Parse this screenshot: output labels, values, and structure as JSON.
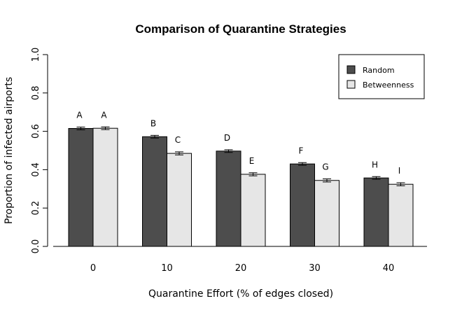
{
  "chart_data": {
    "type": "bar",
    "title": "Comparison of Quarantine Strategies",
    "xlabel": "Quarantine Effort (% of edges closed)",
    "ylabel": "Proportion of infected airports",
    "ylim": [
      0,
      1
    ],
    "yticks": [
      "0.0",
      "0.2",
      "0.4",
      "0.6",
      "0.8",
      "1.0"
    ],
    "categories": [
      "0",
      "10",
      "20",
      "30",
      "40"
    ],
    "series": [
      {
        "name": "Random",
        "color": "#4d4d4d",
        "values": [
          0.615,
          0.572,
          0.497,
          0.43,
          0.357
        ],
        "errors": [
          0.007,
          0.007,
          0.007,
          0.007,
          0.007
        ],
        "letters": [
          "A",
          "B",
          "D",
          "F",
          "H"
        ]
      },
      {
        "name": "Betweenness",
        "color": "#e6e6e6",
        "values": [
          0.616,
          0.485,
          0.376,
          0.344,
          0.324
        ],
        "errors": [
          0.007,
          0.008,
          0.008,
          0.008,
          0.008
        ],
        "letters": [
          "A",
          "C",
          "E",
          "G",
          "I"
        ]
      }
    ],
    "legend": "top-right",
    "grid": false
  }
}
